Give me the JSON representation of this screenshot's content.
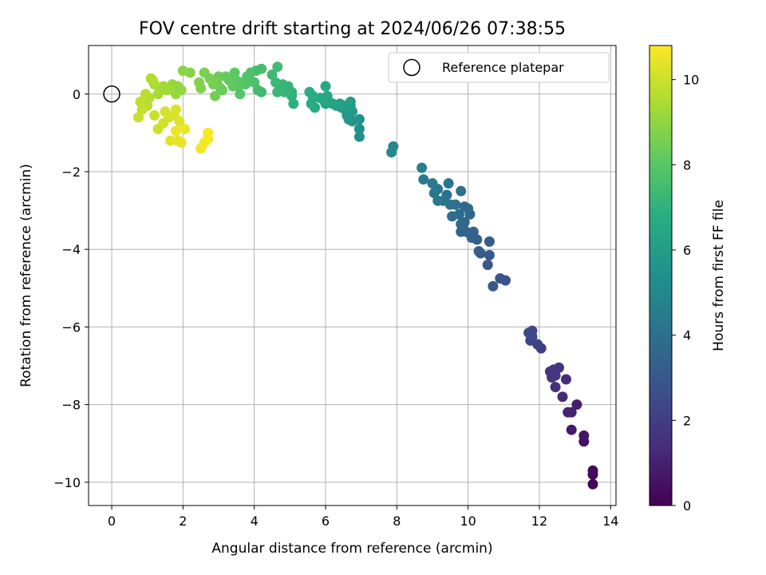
{
  "chart_data": {
    "type": "scatter",
    "title": "FOV centre drift starting at 2024/06/26 07:38:55",
    "xlabel": "Angular distance from reference (arcmin)",
    "ylabel": "Rotation from reference (arcmin)",
    "colorbar_label": "Hours from first FF file",
    "xlim": [
      -0.65,
      14.15
    ],
    "ylim": [
      -10.6,
      1.25
    ],
    "clim": [
      0,
      10.8
    ],
    "colormap": "viridis",
    "grid": true,
    "legend_position": "top-right",
    "x_ticks": [
      0,
      2,
      4,
      6,
      8,
      10,
      12,
      14
    ],
    "y_ticks": [
      0,
      -2,
      -4,
      -6,
      -8,
      -10
    ],
    "colorbar_ticks": [
      0,
      2,
      4,
      6,
      8,
      10
    ],
    "reference_point": {
      "label": "Reference platepar",
      "x": 0,
      "y": 0
    },
    "series": [
      {
        "points": [
          [
            13.5,
            -10.05,
            0.05
          ],
          [
            13.5,
            -9.8,
            0.2
          ],
          [
            13.5,
            -9.7,
            0.3
          ],
          [
            13.25,
            -8.95,
            0.5
          ],
          [
            13.25,
            -8.8,
            0.6
          ],
          [
            12.9,
            -8.65,
            0.75
          ],
          [
            13.05,
            -8.0,
            0.9
          ],
          [
            12.9,
            -8.2,
            1.0
          ],
          [
            12.8,
            -8.2,
            1.1
          ],
          [
            12.65,
            -7.8,
            1.25
          ],
          [
            12.75,
            -7.35,
            1.35
          ],
          [
            12.45,
            -7.55,
            1.45
          ],
          [
            12.55,
            -7.05,
            1.55
          ],
          [
            12.4,
            -7.1,
            1.6
          ],
          [
            12.35,
            -7.3,
            1.7
          ],
          [
            12.3,
            -7.15,
            1.75
          ],
          [
            12.45,
            -7.25,
            1.8
          ],
          [
            12.05,
            -6.55,
            2.0
          ],
          [
            11.95,
            -6.45,
            2.1
          ],
          [
            11.75,
            -6.35,
            2.2
          ],
          [
            11.7,
            -6.15,
            2.3
          ],
          [
            11.8,
            -6.1,
            2.35
          ],
          [
            11.8,
            -6.25,
            2.4
          ],
          [
            11.05,
            -4.8,
            2.8
          ],
          [
            10.9,
            -4.75,
            2.9
          ],
          [
            10.7,
            -4.95,
            2.95
          ],
          [
            10.55,
            -4.4,
            3.0
          ],
          [
            10.6,
            -4.15,
            3.05
          ],
          [
            10.3,
            -4.05,
            3.1
          ],
          [
            10.35,
            -4.1,
            3.15
          ],
          [
            10.6,
            -3.8,
            3.2
          ],
          [
            10.25,
            -3.75,
            3.3
          ],
          [
            10.15,
            -3.55,
            3.4
          ],
          [
            10.1,
            -3.7,
            3.45
          ],
          [
            9.95,
            -3.55,
            3.5
          ],
          [
            9.8,
            -3.55,
            3.55
          ],
          [
            9.9,
            -3.3,
            3.6
          ],
          [
            10.05,
            -3.1,
            3.65
          ],
          [
            10.0,
            -2.95,
            3.7
          ],
          [
            9.9,
            -2.9,
            3.75
          ],
          [
            9.8,
            -3.35,
            3.8
          ],
          [
            9.75,
            -3.1,
            3.85
          ],
          [
            9.55,
            -3.15,
            3.9
          ],
          [
            9.65,
            -2.85,
            3.95
          ],
          [
            9.8,
            -2.5,
            4.0
          ],
          [
            9.5,
            -2.85,
            4.05
          ],
          [
            9.4,
            -2.6,
            4.1
          ],
          [
            9.3,
            -2.75,
            4.15
          ],
          [
            9.45,
            -2.3,
            4.2
          ],
          [
            9.15,
            -2.45,
            4.25
          ],
          [
            9.05,
            -2.55,
            4.3
          ],
          [
            9.0,
            -2.3,
            4.35
          ],
          [
            9.15,
            -2.75,
            4.4
          ],
          [
            8.75,
            -2.2,
            4.5
          ],
          [
            8.7,
            -1.9,
            4.6
          ],
          [
            7.85,
            -1.5,
            5.0
          ],
          [
            7.9,
            -1.35,
            5.05
          ],
          [
            6.95,
            -1.1,
            5.3
          ],
          [
            6.95,
            -0.9,
            5.4
          ],
          [
            6.95,
            -0.65,
            5.5
          ],
          [
            6.75,
            -0.7,
            5.6
          ],
          [
            6.65,
            -0.65,
            5.7
          ],
          [
            6.75,
            -0.45,
            5.75
          ],
          [
            6.6,
            -0.55,
            5.8
          ],
          [
            6.55,
            -0.4,
            5.85
          ],
          [
            6.7,
            -0.2,
            5.9
          ],
          [
            6.5,
            -0.3,
            5.95
          ],
          [
            6.4,
            -0.25,
            6.0
          ],
          [
            6.6,
            -0.3,
            6.05
          ],
          [
            6.7,
            -0.3,
            6.1
          ],
          [
            6.45,
            -0.35,
            6.15
          ],
          [
            6.3,
            -0.3,
            6.2
          ],
          [
            6.2,
            -0.25,
            6.25
          ],
          [
            6.1,
            -0.2,
            6.3
          ],
          [
            6.0,
            -0.25,
            6.35
          ],
          [
            5.95,
            -0.15,
            6.4
          ],
          [
            6.05,
            -0.05,
            6.45
          ],
          [
            6.0,
            0.2,
            6.5
          ],
          [
            5.85,
            -0.1,
            6.55
          ],
          [
            5.7,
            -0.35,
            6.6
          ],
          [
            5.65,
            -0.1,
            6.65
          ],
          [
            5.6,
            -0.25,
            6.7
          ],
          [
            5.55,
            0.05,
            6.75
          ],
          [
            5.65,
            -0.05,
            6.8
          ],
          [
            5.1,
            -0.25,
            6.9
          ],
          [
            5.05,
            -0.05,
            6.95
          ],
          [
            5.05,
            0.05,
            7.0
          ],
          [
            4.95,
            0.2,
            7.05
          ],
          [
            4.95,
            0.1,
            7.1
          ],
          [
            4.85,
            0.05,
            7.15
          ],
          [
            4.8,
            0.25,
            7.2
          ],
          [
            4.65,
            0.05,
            7.25
          ],
          [
            4.6,
            0.3,
            7.3
          ],
          [
            4.5,
            0.5,
            7.35
          ],
          [
            4.65,
            0.7,
            7.4
          ],
          [
            4.2,
            0.05,
            7.45
          ],
          [
            4.1,
            0.1,
            7.5
          ],
          [
            4.2,
            0.65,
            7.55
          ],
          [
            4.05,
            0.6,
            7.6
          ],
          [
            4.0,
            0.3,
            7.65
          ],
          [
            3.9,
            0.55,
            7.7
          ],
          [
            3.85,
            0.35,
            7.75
          ],
          [
            3.8,
            0.45,
            7.8
          ],
          [
            3.75,
            0.25,
            7.85
          ],
          [
            3.65,
            0.3,
            7.9
          ],
          [
            3.6,
            0.0,
            7.95
          ],
          [
            3.55,
            0.2,
            8.0
          ],
          [
            3.5,
            0.35,
            8.05
          ],
          [
            3.45,
            0.55,
            8.1
          ],
          [
            3.4,
            0.2,
            8.15
          ],
          [
            3.3,
            0.35,
            8.2
          ],
          [
            3.2,
            0.45,
            8.25
          ],
          [
            3.1,
            0.1,
            8.3
          ],
          [
            3.05,
            0.15,
            8.35
          ],
          [
            3.0,
            0.45,
            8.4
          ],
          [
            2.95,
            0.3,
            8.45
          ],
          [
            2.9,
            -0.05,
            8.5
          ],
          [
            2.85,
            0.25,
            8.55
          ],
          [
            2.75,
            0.4,
            8.6
          ],
          [
            2.6,
            0.55,
            8.65
          ],
          [
            2.5,
            0.15,
            8.7
          ],
          [
            2.45,
            0.3,
            8.75
          ],
          [
            2.2,
            0.55,
            8.85
          ],
          [
            2.0,
            0.6,
            8.9
          ],
          [
            1.95,
            0.1,
            9.0
          ],
          [
            1.85,
            0.2,
            9.05
          ],
          [
            1.8,
            0.0,
            9.1
          ],
          [
            1.7,
            0.25,
            9.15
          ],
          [
            1.6,
            0.15,
            9.2
          ],
          [
            1.55,
            0.1,
            9.25
          ],
          [
            1.45,
            0.2,
            9.3
          ],
          [
            1.35,
            0.15,
            9.35
          ],
          [
            1.3,
            0.0,
            9.4
          ],
          [
            1.2,
            0.25,
            9.45
          ],
          [
            1.15,
            0.35,
            9.5
          ],
          [
            1.1,
            0.4,
            9.55
          ],
          [
            1.05,
            -0.1,
            9.6
          ],
          [
            1.0,
            -0.3,
            9.65
          ],
          [
            0.95,
            0.0,
            9.7
          ],
          [
            0.9,
            -0.15,
            9.75
          ],
          [
            0.85,
            -0.4,
            9.8
          ],
          [
            0.8,
            -0.2,
            9.85
          ],
          [
            0.75,
            -0.6,
            9.9
          ],
          [
            1.2,
            -0.55,
            9.95
          ],
          [
            1.3,
            -0.9,
            10.0
          ],
          [
            1.45,
            -0.75,
            10.05
          ],
          [
            1.6,
            -0.6,
            10.1
          ],
          [
            1.5,
            -0.45,
            10.15
          ],
          [
            1.75,
            -0.55,
            10.2
          ],
          [
            1.8,
            -0.4,
            10.25
          ],
          [
            1.9,
            -0.7,
            10.3
          ],
          [
            1.65,
            -1.2,
            10.35
          ],
          [
            1.85,
            -1.2,
            10.4
          ],
          [
            1.95,
            -1.25,
            10.45
          ],
          [
            2.05,
            -0.9,
            10.5
          ],
          [
            1.8,
            -0.95,
            10.55
          ],
          [
            2.5,
            -1.4,
            10.6
          ],
          [
            2.6,
            -1.25,
            10.65
          ],
          [
            2.7,
            -1.15,
            10.7
          ],
          [
            2.7,
            -1.0,
            10.75
          ]
        ]
      }
    ]
  }
}
